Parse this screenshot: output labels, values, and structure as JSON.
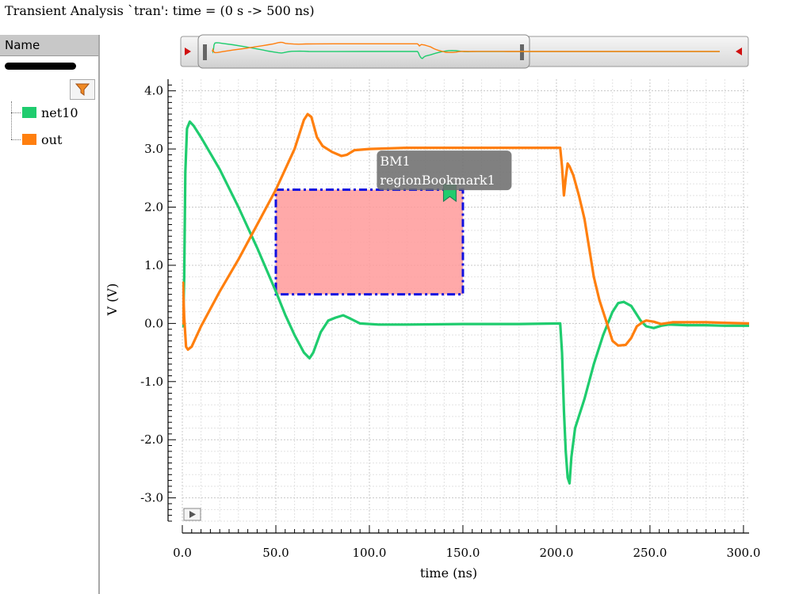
{
  "title": "Transient Analysis `tran': time = (0 s -> 500 ns)",
  "sidebar": {
    "header": "Name",
    "traces": [
      {
        "name": "net10",
        "color": "#1fcc6e"
      },
      {
        "name": "out",
        "color": "#ff7f0e"
      }
    ]
  },
  "icons": {
    "filter": "filter-funnel-icon",
    "play": "play-icon",
    "bookmark": "bookmark-flag-icon"
  },
  "bookmark": {
    "line1": "BM1",
    "line2": "regionBookmark1",
    "x": 143,
    "y": 2.1
  },
  "region": {
    "x": [
      50,
      150
    ],
    "y": [
      0.5,
      2.3
    ],
    "fill": "#ff9a9a",
    "border": "#1010e0"
  },
  "chart_data": {
    "type": "line",
    "xlabel": "time (ns)",
    "ylabel": "V (V)",
    "xlim": [
      0,
      303
    ],
    "ylim": [
      -3.4,
      4.2
    ],
    "xticks": [
      "0.0",
      "50.0",
      "100.0",
      "150.0",
      "200.0",
      "250.0",
      "300.0"
    ],
    "yticks": [
      "4.0",
      "3.0",
      "2.0",
      "1.0",
      "0.0",
      "-1.0",
      "-2.0",
      "-3.0"
    ],
    "grid": true,
    "series": [
      {
        "name": "net10",
        "color": "#1fcc6e",
        "points": [
          [
            0,
            0.55
          ],
          [
            0.4,
            -0.05
          ],
          [
            1,
            0.8
          ],
          [
            1.6,
            2.6
          ],
          [
            2.5,
            3.35
          ],
          [
            4,
            3.47
          ],
          [
            6,
            3.4
          ],
          [
            10,
            3.2
          ],
          [
            20,
            2.65
          ],
          [
            30,
            2.0
          ],
          [
            40,
            1.3
          ],
          [
            50,
            0.55
          ],
          [
            55,
            0.15
          ],
          [
            60,
            -0.2
          ],
          [
            65,
            -0.5
          ],
          [
            68,
            -0.6
          ],
          [
            70,
            -0.5
          ],
          [
            74,
            -0.15
          ],
          [
            78,
            0.05
          ],
          [
            82,
            0.1
          ],
          [
            86,
            0.14
          ],
          [
            90,
            0.08
          ],
          [
            95,
            0.0
          ],
          [
            105,
            -0.02
          ],
          [
            120,
            -0.02
          ],
          [
            150,
            -0.01
          ],
          [
            180,
            -0.01
          ],
          [
            202,
            0.0
          ],
          [
            203,
            -0.5
          ],
          [
            204,
            -1.5
          ],
          [
            205,
            -2.2
          ],
          [
            206,
            -2.65
          ],
          [
            207,
            -2.75
          ],
          [
            208,
            -2.3
          ],
          [
            210,
            -1.8
          ],
          [
            215,
            -1.3
          ],
          [
            220,
            -0.7
          ],
          [
            225,
            -0.2
          ],
          [
            230,
            0.2
          ],
          [
            233,
            0.35
          ],
          [
            236,
            0.37
          ],
          [
            240,
            0.3
          ],
          [
            245,
            0.05
          ],
          [
            248,
            -0.05
          ],
          [
            252,
            -0.08
          ],
          [
            256,
            -0.04
          ],
          [
            260,
            -0.02
          ],
          [
            270,
            -0.03
          ],
          [
            280,
            -0.03
          ],
          [
            290,
            -0.04
          ],
          [
            303,
            -0.04
          ]
        ]
      },
      {
        "name": "out",
        "color": "#ff7f0e",
        "points": [
          [
            0,
            0.0
          ],
          [
            0.4,
            0.7
          ],
          [
            1,
            0.1
          ],
          [
            2,
            -0.4
          ],
          [
            3,
            -0.45
          ],
          [
            5,
            -0.4
          ],
          [
            10,
            -0.05
          ],
          [
            20,
            0.55
          ],
          [
            30,
            1.1
          ],
          [
            40,
            1.7
          ],
          [
            50,
            2.3
          ],
          [
            55,
            2.65
          ],
          [
            60,
            3.0
          ],
          [
            65,
            3.5
          ],
          [
            67,
            3.6
          ],
          [
            69,
            3.55
          ],
          [
            72,
            3.2
          ],
          [
            75,
            3.05
          ],
          [
            80,
            2.95
          ],
          [
            85,
            2.88
          ],
          [
            88,
            2.9
          ],
          [
            92,
            2.98
          ],
          [
            100,
            3.0
          ],
          [
            120,
            3.02
          ],
          [
            150,
            3.02
          ],
          [
            180,
            3.02
          ],
          [
            202,
            3.02
          ],
          [
            203,
            2.7
          ],
          [
            204,
            2.2
          ],
          [
            205,
            2.5
          ],
          [
            206,
            2.75
          ],
          [
            207,
            2.7
          ],
          [
            209,
            2.55
          ],
          [
            212,
            2.2
          ],
          [
            215,
            1.8
          ],
          [
            218,
            1.2
          ],
          [
            220,
            0.8
          ],
          [
            223,
            0.4
          ],
          [
            227,
            0.0
          ],
          [
            230,
            -0.3
          ],
          [
            233,
            -0.38
          ],
          [
            237,
            -0.37
          ],
          [
            240,
            -0.25
          ],
          [
            243,
            -0.05
          ],
          [
            246,
            0.02
          ],
          [
            248,
            0.05
          ],
          [
            252,
            0.03
          ],
          [
            256,
            -0.01
          ],
          [
            262,
            0.02
          ],
          [
            270,
            0.02
          ],
          [
            280,
            0.02
          ],
          [
            290,
            0.01
          ],
          [
            303,
            0.0
          ]
        ]
      }
    ]
  },
  "overview": {
    "note": ""
  }
}
